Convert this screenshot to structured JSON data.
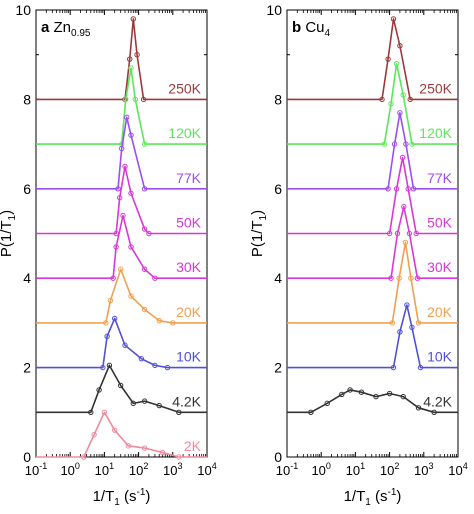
{
  "figure": {
    "ylabel_main": "P(1/T",
    "ylabel_sub": "1",
    "ylabel_close": ")",
    "xlabel_main": "1/T",
    "xlabel_sub": "1",
    "xlabel_rest": " (s",
    "xlabel_exp": "-1",
    "xlabel_close": ")"
  },
  "chart_data": [
    {
      "type": "line",
      "panel_letter": "a",
      "sample_main": "Zn",
      "sample_sub": "0.95",
      "x_scale": "log",
      "xlim": [
        0.1,
        10000
      ],
      "ylim": [
        0,
        10
      ],
      "x_ticks": [
        {
          "value": 0.1,
          "base": "10",
          "exp": "-1"
        },
        {
          "value": 1,
          "base": "10",
          "exp": "0"
        },
        {
          "value": 10,
          "base": "10",
          "exp": "1"
        },
        {
          "value": 100,
          "base": "10",
          "exp": "2"
        },
        {
          "value": 1000,
          "base": "10",
          "exp": "3"
        },
        {
          "value": 10000,
          "base": "10",
          "exp": "4"
        }
      ],
      "y_ticks": [
        "0",
        "2",
        "4",
        "6",
        "8",
        "10"
      ],
      "series": [
        {
          "name": "250K",
          "color": "#9b3a3a",
          "offset": 8,
          "points": [
            [
              0.1,
              0
            ],
            [
              40,
              0
            ],
            [
              55,
              0.9
            ],
            [
              70,
              1.8
            ],
            [
              90,
              1.0
            ],
            [
              140,
              0
            ],
            [
              10000,
              0
            ]
          ]
        },
        {
          "name": "120K",
          "color": "#5ce65c",
          "offset": 7,
          "points": [
            [
              0.1,
              0
            ],
            [
              32,
              0
            ],
            [
              42,
              1.0
            ],
            [
              60,
              1.7
            ],
            [
              80,
              1.0
            ],
            [
              150,
              0
            ],
            [
              10000,
              0
            ]
          ]
        },
        {
          "name": "77K",
          "color": "#9b4ff0",
          "offset": 6,
          "points": [
            [
              0.1,
              0
            ],
            [
              25,
              0
            ],
            [
              32,
              0.9
            ],
            [
              45,
              1.6
            ],
            [
              60,
              1.2
            ],
            [
              150,
              0
            ],
            [
              10000,
              0
            ]
          ]
        },
        {
          "name": "50K",
          "color": "#d838d8",
          "offset": 5,
          "points": [
            [
              0.1,
              0
            ],
            [
              22,
              0
            ],
            [
              28,
              0.8
            ],
            [
              40,
              1.5
            ],
            [
              60,
              0.9
            ],
            [
              150,
              0.1
            ],
            [
              200,
              0
            ],
            [
              10000,
              0
            ]
          ]
        },
        {
          "name": "30K",
          "color": "#d838d8",
          "offset": 4,
          "points": [
            [
              0.1,
              0
            ],
            [
              18,
              0
            ],
            [
              22,
              0.7
            ],
            [
              35,
              1.4
            ],
            [
              60,
              0.7
            ],
            [
              150,
              0.2
            ],
            [
              300,
              0
            ],
            [
              10000,
              0
            ]
          ]
        },
        {
          "name": "20K",
          "color": "#f0a050",
          "offset": 3,
          "points": [
            [
              0.1,
              0
            ],
            [
              11,
              0
            ],
            [
              15,
              0.5
            ],
            [
              30,
              1.2
            ],
            [
              60,
              0.6
            ],
            [
              150,
              0.3
            ],
            [
              400,
              0.05
            ],
            [
              1000,
              0
            ],
            [
              10000,
              0
            ]
          ]
        },
        {
          "name": "10K",
          "color": "#5050d8",
          "offset": 2,
          "points": [
            [
              0.1,
              0
            ],
            [
              9,
              0
            ],
            [
              12,
              0.7
            ],
            [
              20,
              1.1
            ],
            [
              40,
              0.5
            ],
            [
              120,
              0.2
            ],
            [
              300,
              0.05
            ],
            [
              700,
              0
            ],
            [
              10000,
              0
            ]
          ]
        },
        {
          "name": "4.2K",
          "color": "#333333",
          "offset": 1,
          "points": [
            [
              0.1,
              0
            ],
            [
              4,
              0
            ],
            [
              7,
              0.5
            ],
            [
              14,
              1.05
            ],
            [
              30,
              0.6
            ],
            [
              70,
              0.2
            ],
            [
              150,
              0.25
            ],
            [
              400,
              0.15
            ],
            [
              1500,
              0
            ],
            [
              10000,
              0
            ]
          ]
        },
        {
          "name": "2K",
          "color": "#f08aa0",
          "offset": 0,
          "points": [
            [
              0.1,
              0
            ],
            [
              2.5,
              0
            ],
            [
              5,
              0.5
            ],
            [
              10,
              1.0
            ],
            [
              20,
              0.6
            ],
            [
              50,
              0.25
            ],
            [
              150,
              0.2
            ],
            [
              500,
              0.1
            ],
            [
              1500,
              0
            ],
            [
              10000,
              0
            ]
          ]
        }
      ]
    },
    {
      "type": "line",
      "panel_letter": "b",
      "sample_main": "Cu",
      "sample_sub": "4",
      "x_scale": "log",
      "xlim": [
        0.1,
        10000
      ],
      "ylim": [
        0,
        10
      ],
      "x_ticks": [
        {
          "value": 0.1,
          "base": "10",
          "exp": "-1"
        },
        {
          "value": 1,
          "base": "10",
          "exp": "0"
        },
        {
          "value": 10,
          "base": "10",
          "exp": "1"
        },
        {
          "value": 100,
          "base": "10",
          "exp": "2"
        },
        {
          "value": 1000,
          "base": "10",
          "exp": "3"
        },
        {
          "value": 10000,
          "base": "10",
          "exp": "4"
        }
      ],
      "y_ticks": [
        "0",
        "2",
        "4",
        "6",
        "8",
        "10"
      ],
      "series": [
        {
          "name": "250K",
          "color": "#9b3a3a",
          "offset": 8,
          "points": [
            [
              0.1,
              0
            ],
            [
              60,
              0
            ],
            [
              90,
              0.9
            ],
            [
              130,
              1.8
            ],
            [
              200,
              1.2
            ],
            [
              400,
              0
            ],
            [
              10000,
              0
            ]
          ]
        },
        {
          "name": "120K",
          "color": "#5ce65c",
          "offset": 7,
          "points": [
            [
              0.1,
              0
            ],
            [
              70,
              0
            ],
            [
              110,
              0.9
            ],
            [
              160,
              1.8
            ],
            [
              250,
              1.1
            ],
            [
              450,
              0
            ],
            [
              10000,
              0
            ]
          ]
        },
        {
          "name": "77K",
          "color": "#9b4ff0",
          "offset": 6,
          "points": [
            [
              0.1,
              0
            ],
            [
              90,
              0
            ],
            [
              140,
              1.0
            ],
            [
              200,
              1.7
            ],
            [
              300,
              1.0
            ],
            [
              500,
              0
            ],
            [
              10000,
              0
            ]
          ]
        },
        {
          "name": "50K",
          "color": "#d838d8",
          "offset": 5,
          "points": [
            [
              0.1,
              0
            ],
            [
              100,
              0
            ],
            [
              160,
              1.0
            ],
            [
              240,
              1.7
            ],
            [
              350,
              1.0
            ],
            [
              600,
              0
            ],
            [
              10000,
              0
            ]
          ]
        },
        {
          "name": "30K",
          "color": "#d838d8",
          "offset": 4,
          "points": [
            [
              0.1,
              0
            ],
            [
              110,
              0
            ],
            [
              170,
              1.0
            ],
            [
              260,
              1.6
            ],
            [
              380,
              1.0
            ],
            [
              650,
              0
            ],
            [
              10000,
              0
            ]
          ]
        },
        {
          "name": "20K",
          "color": "#f0a050",
          "offset": 3,
          "points": [
            [
              0.1,
              0
            ],
            [
              120,
              0
            ],
            [
              190,
              1.0
            ],
            [
              290,
              1.8
            ],
            [
              420,
              1.0
            ],
            [
              700,
              0
            ],
            [
              10000,
              0
            ]
          ]
        },
        {
          "name": "10K",
          "color": "#5050d8",
          "offset": 2,
          "points": [
            [
              0.1,
              0
            ],
            [
              130,
              0
            ],
            [
              200,
              0.8
            ],
            [
              320,
              1.4
            ],
            [
              450,
              0.9
            ],
            [
              800,
              0
            ],
            [
              10000,
              0
            ]
          ]
        },
        {
          "name": "4.2K",
          "color": "#333333",
          "offset": 1,
          "points": [
            [
              0.1,
              0
            ],
            [
              0.5,
              0
            ],
            [
              1.5,
              0.2
            ],
            [
              4,
              0.4
            ],
            [
              7,
              0.5
            ],
            [
              15,
              0.45
            ],
            [
              40,
              0.35
            ],
            [
              100,
              0.42
            ],
            [
              250,
              0.35
            ],
            [
              700,
              0.1
            ],
            [
              2000,
              0
            ],
            [
              10000,
              0
            ]
          ]
        }
      ]
    }
  ]
}
